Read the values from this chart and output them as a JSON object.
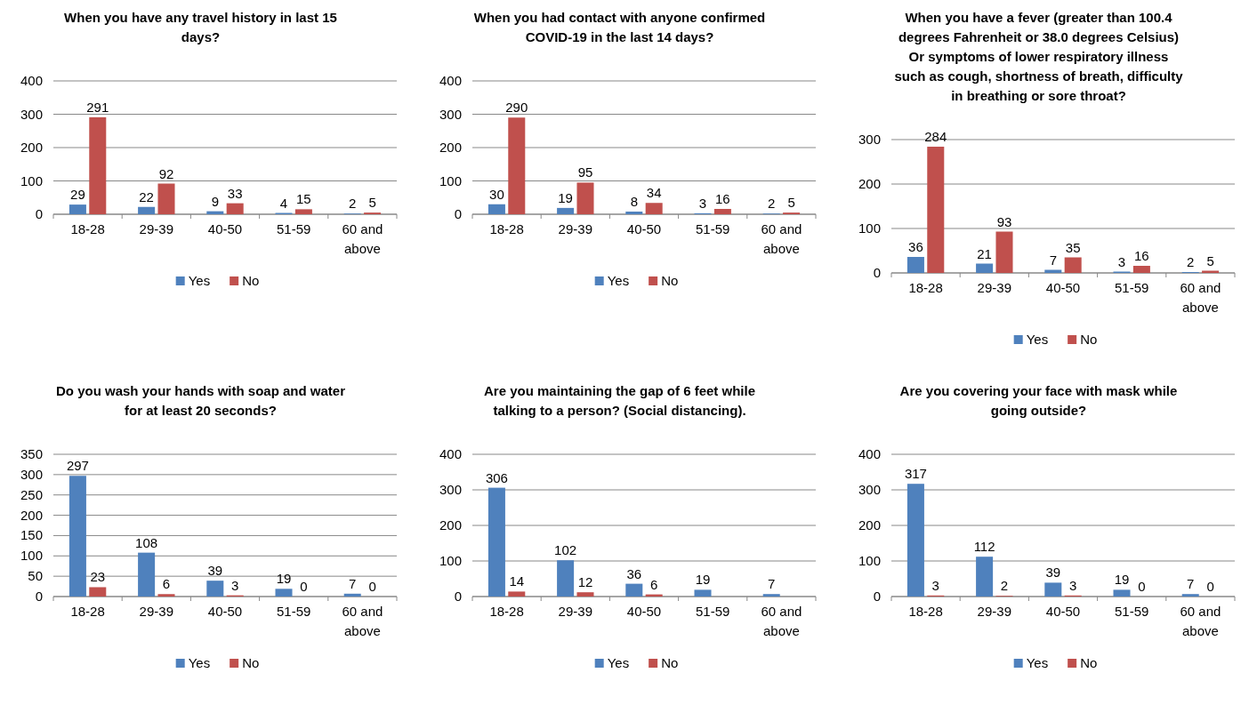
{
  "chart_data": [
    {
      "type": "bar",
      "title": "When you have any travel history in last 15 days?",
      "categories": [
        "18-28",
        "29-39",
        "40-50",
        "51-59",
        "60 and above"
      ],
      "series": [
        {
          "name": "Yes",
          "color": "#4f81bd",
          "values": [
            29,
            22,
            9,
            4,
            2
          ]
        },
        {
          "name": "No",
          "color": "#c0504d",
          "values": [
            291,
            92,
            33,
            15,
            5
          ]
        }
      ],
      "ylim": [
        0,
        400
      ],
      "yticks": [
        0,
        100,
        200,
        300,
        400
      ],
      "grid": "y",
      "legend": "bottom",
      "data_labels": true
    },
    {
      "type": "bar",
      "title": "When you had contact with anyone confirmed COVID-19 in the last 14 days?",
      "categories": [
        "18-28",
        "29-39",
        "40-50",
        "51-59",
        "60 and above"
      ],
      "series": [
        {
          "name": "Yes",
          "color": "#4f81bd",
          "values": [
            30,
            19,
            8,
            3,
            2
          ]
        },
        {
          "name": "No",
          "color": "#c0504d",
          "values": [
            290,
            95,
            34,
            16,
            5
          ]
        }
      ],
      "ylim": [
        0,
        400
      ],
      "yticks": [
        0,
        100,
        200,
        300,
        400
      ],
      "grid": "y",
      "legend": "bottom",
      "data_labels": true
    },
    {
      "type": "bar",
      "title": "When you have a fever (greater than 100.4 degrees Fahrenheit or 38.0 degrees Celsius) Or symptoms of lower respiratory illness such as cough, shortness of breath, difficulty in breathing or sore throat?",
      "categories": [
        "18-28",
        "29-39",
        "40-50",
        "51-59",
        "60 and above"
      ],
      "series": [
        {
          "name": "Yes",
          "color": "#4f81bd",
          "values": [
            36,
            21,
            7,
            3,
            2
          ]
        },
        {
          "name": "No",
          "color": "#c0504d",
          "values": [
            284,
            93,
            35,
            16,
            5
          ]
        }
      ],
      "ylim": [
        0,
        300
      ],
      "yticks": [
        0,
        100,
        200,
        300
      ],
      "grid": "y",
      "legend": "bottom",
      "data_labels": true
    },
    {
      "type": "bar",
      "title": "Do you wash your hands with soap and water for at least 20 seconds?",
      "categories": [
        "18-28",
        "29-39",
        "40-50",
        "51-59",
        "60 and above"
      ],
      "series": [
        {
          "name": "Yes",
          "color": "#4f81bd",
          "values": [
            297,
            108,
            39,
            19,
            7
          ]
        },
        {
          "name": "No",
          "color": "#c0504d",
          "values": [
            23,
            6,
            3,
            0,
            0
          ]
        }
      ],
      "ylim": [
        0,
        350
      ],
      "yticks": [
        0,
        50,
        100,
        150,
        200,
        250,
        300,
        350
      ],
      "grid": "y",
      "legend": "bottom",
      "data_labels": true
    },
    {
      "type": "bar",
      "title": "Are you maintaining the gap of 6 feet while talking to a person? (Social distancing).",
      "categories": [
        "18-28",
        "29-39",
        "40-50",
        "51-59",
        "60 and above"
      ],
      "series": [
        {
          "name": "Yes",
          "color": "#4f81bd",
          "values": [
            306,
            102,
            36,
            19,
            7
          ],
          "value_labels": [
            "306",
            "102",
            "36",
            "19",
            "7"
          ]
        },
        {
          "name": "No",
          "color": "#c0504d",
          "values": [
            14,
            12,
            6,
            0,
            0
          ],
          "value_labels": [
            "14",
            "12",
            "6",
            null,
            null
          ]
        }
      ],
      "ylim": [
        0,
        400
      ],
      "yticks": [
        0,
        100,
        200,
        300,
        400
      ],
      "grid": "y",
      "legend": "bottom"
    },
    {
      "type": "bar",
      "title": "Are you covering your face with mask while going outside?",
      "categories": [
        "18-28",
        "29-39",
        "40-50",
        "51-59",
        "60 and above"
      ],
      "series": [
        {
          "name": "Yes",
          "color": "#4f81bd",
          "values": [
            317,
            112,
            39,
            19,
            7
          ]
        },
        {
          "name": "No",
          "color": "#c0504d",
          "values": [
            3,
            2,
            3,
            0,
            0
          ]
        }
      ],
      "ylim": [
        0,
        400
      ],
      "yticks": [
        0,
        100,
        200,
        300,
        400
      ],
      "grid": "y",
      "legend": "bottom",
      "data_labels": true
    }
  ]
}
